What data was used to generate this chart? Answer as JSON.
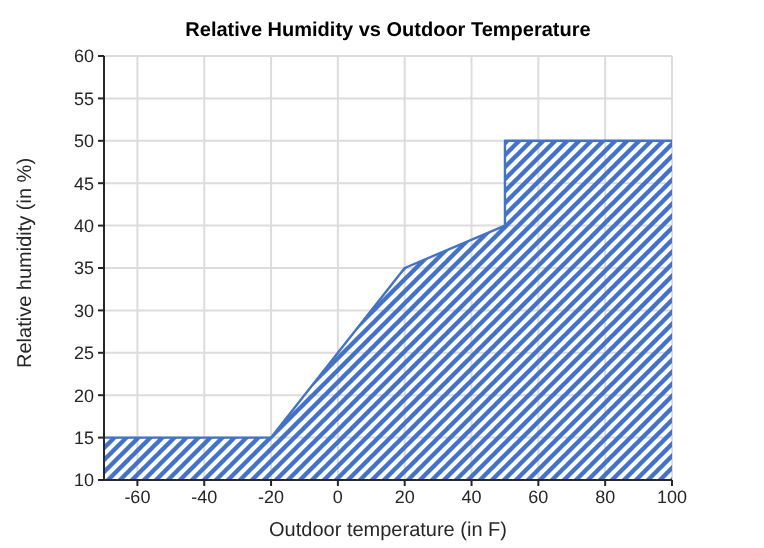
{
  "chart_data": {
    "type": "area",
    "title": "Relative Humidity vs Outdoor Temperature",
    "xlabel": "Outdoor temperature (in F)",
    "ylabel": "Relative humidity (in %)",
    "x": [
      -70,
      -20,
      20,
      50,
      50,
      100
    ],
    "series": [
      {
        "color": "#4472c4",
        "values": [
          15,
          15,
          35,
          40,
          50,
          50
        ]
      }
    ],
    "xlim": [
      -70,
      100
    ],
    "xticks": [
      -60,
      -40,
      -20,
      0,
      20,
      40,
      60,
      80,
      100
    ],
    "ylim": [
      10,
      60
    ],
    "yticks": [
      10,
      15,
      20,
      25,
      30,
      35,
      40,
      45,
      50,
      55,
      60
    ],
    "grid": true,
    "legend": false
  }
}
